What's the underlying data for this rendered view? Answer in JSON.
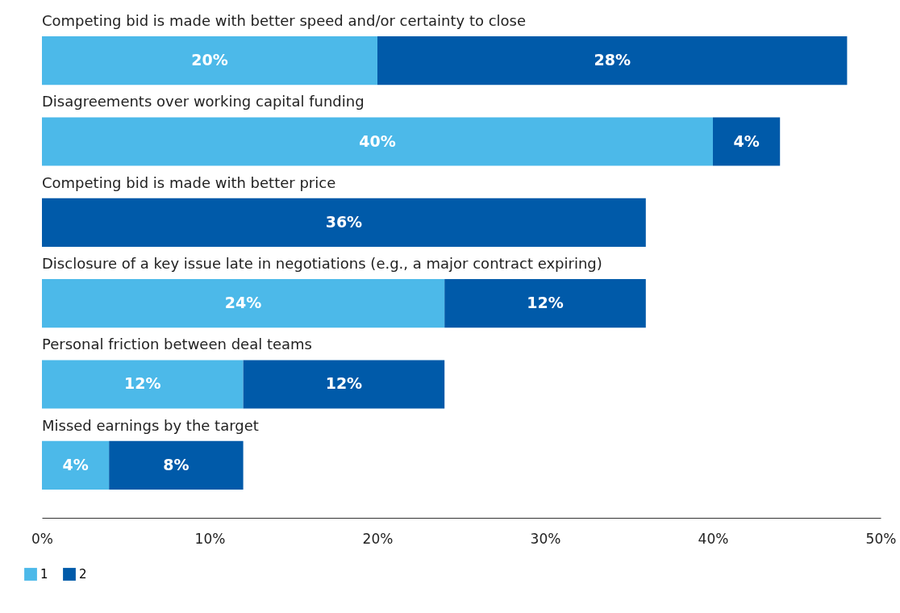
{
  "chart_data": {
    "type": "bar",
    "orientation": "horizontal",
    "stacked": true,
    "categories": [
      "Competing bid is made with better speed and/or certainty to close",
      "Disagreements over working capital funding",
      "Competing bid is made with better price",
      "Disclosure of a key issue late in negotiations (e.g., a major contract expiring)",
      "Personal friction between deal teams",
      "Missed earnings by the target"
    ],
    "series": [
      {
        "name": "1",
        "color": "#4cb9e9",
        "values": [
          20,
          40,
          null,
          24,
          12,
          4
        ],
        "value_labels": [
          "20%",
          "40%",
          null,
          "24%",
          "12%",
          "4%"
        ]
      },
      {
        "name": "2",
        "color": "#005aa9",
        "values": [
          28,
          4,
          36,
          12,
          12,
          8
        ],
        "value_labels": [
          "28%",
          "4%",
          "36%",
          "12%",
          "12%",
          "8%"
        ]
      }
    ],
    "xlim": [
      0,
      50
    ],
    "xticks": [
      {
        "value": 0,
        "label": "0%"
      },
      {
        "value": 10,
        "label": "10%"
      },
      {
        "value": 20,
        "label": "20%"
      },
      {
        "value": 30,
        "label": "30%"
      },
      {
        "value": 40,
        "label": "40%"
      },
      {
        "value": 50,
        "label": "50%"
      }
    ],
    "grid": false,
    "legend": "bottom left"
  }
}
